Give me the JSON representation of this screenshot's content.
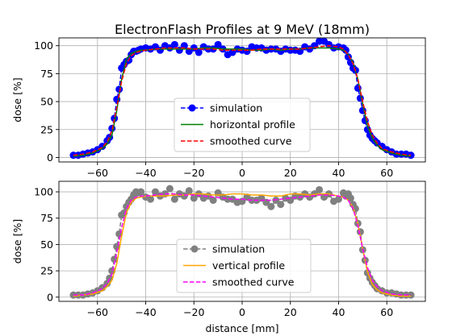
{
  "figure": {
    "title": "ElectronFlash Profiles at 9 MeV (18mm)"
  },
  "chart_data": [
    {
      "type": "line",
      "title": "ElectronFlash Profiles at 9 MeV (18mm)",
      "xlabel": "",
      "ylabel": "dose [%]",
      "xlim": [
        -76,
        76
      ],
      "ylim": [
        -4,
        107
      ],
      "xticks": [
        -60,
        -40,
        -20,
        0,
        20,
        40,
        60
      ],
      "xtick_labels": [
        "−60",
        "−40",
        "−20",
        "0",
        "20",
        "40",
        "60"
      ],
      "yticks": [
        0,
        25,
        50,
        75,
        100
      ],
      "grid": true,
      "legend_position": "lower-center",
      "series": [
        {
          "name": "simulation",
          "style": "dashed-with-markers",
          "color": "#0000ff",
          "x": [
            -70,
            -68,
            -66,
            -64,
            -62,
            -60,
            -58,
            -56,
            -55,
            -54,
            -53,
            -52,
            -51,
            -50,
            -49,
            -48,
            -47,
            -46,
            -45,
            -44,
            -43,
            -42,
            -40,
            -38,
            -36,
            -34,
            -32,
            -30,
            -28,
            -26,
            -24,
            -22,
            -20,
            -18,
            -16,
            -14,
            -12,
            -10,
            -8,
            -6,
            -4,
            -2,
            0,
            2,
            4,
            6,
            8,
            10,
            12,
            14,
            16,
            18,
            20,
            22,
            24,
            26,
            28,
            30,
            32,
            34,
            36,
            38,
            40,
            42,
            43,
            44,
            45,
            46,
            47,
            48,
            49,
            50,
            51,
            52,
            53,
            54,
            55,
            56,
            58,
            60,
            62,
            64,
            66,
            68,
            70
          ],
          "y": [
            2,
            2,
            3,
            4,
            5,
            7,
            10,
            15,
            18,
            26,
            35,
            52,
            61,
            80,
            83,
            86,
            87,
            92,
            95,
            95,
            96,
            97,
            98,
            97,
            99,
            96,
            100,
            98,
            101,
            96,
            100,
            95,
            98,
            94,
            99,
            97,
            97,
            101,
            97,
            92,
            94,
            97,
            96,
            95,
            99,
            98,
            98,
            96,
            97,
            97,
            95,
            97,
            96,
            96,
            95,
            99,
            97,
            100,
            104,
            104,
            101,
            98,
            99,
            98,
            96,
            90,
            85,
            80,
            78,
            62,
            53,
            42,
            33,
            25,
            20,
            17,
            15,
            13,
            10,
            7,
            5,
            3,
            3,
            3,
            2
          ]
        },
        {
          "name": "horizontal profile",
          "style": "solid",
          "color": "#008000",
          "x": [
            -70,
            -66,
            -62,
            -58,
            -56,
            -54,
            -52,
            -50,
            -48,
            -46,
            -44,
            -42,
            -40,
            -36,
            -32,
            -28,
            -24,
            -20,
            -16,
            -12,
            -8,
            -4,
            0,
            4,
            8,
            12,
            16,
            20,
            24,
            28,
            32,
            36,
            40,
            42,
            44,
            46,
            48,
            50,
            52,
            54,
            56,
            58,
            62,
            66,
            70
          ],
          "y": [
            1,
            2,
            4,
            8,
            12,
            20,
            42,
            70,
            88,
            93,
            95,
            96,
            96,
            97,
            97,
            97,
            97,
            97,
            98,
            98,
            97,
            97,
            97,
            96,
            96,
            97,
            96,
            97,
            97,
            98,
            98,
            98,
            97,
            96,
            92,
            85,
            70,
            48,
            28,
            17,
            11,
            7,
            4,
            2,
            1
          ]
        },
        {
          "name": "smoothed curve",
          "style": "dashed",
          "color": "#ff0000",
          "x": [
            -70,
            -66,
            -62,
            -58,
            -56,
            -54,
            -52,
            -50,
            -48,
            -46,
            -44,
            -42,
            -40,
            -36,
            -32,
            -28,
            -24,
            -20,
            -16,
            -12,
            -8,
            -4,
            0,
            4,
            8,
            12,
            16,
            20,
            24,
            28,
            32,
            36,
            40,
            42,
            44,
            46,
            48,
            50,
            52,
            54,
            56,
            58,
            62,
            66,
            70
          ],
          "y": [
            2,
            3,
            5,
            9,
            14,
            24,
            45,
            68,
            84,
            91,
            94,
            95,
            96,
            97,
            98,
            98,
            98,
            97,
            97,
            97,
            96,
            96,
            96,
            96,
            97,
            97,
            97,
            97,
            97,
            98,
            99,
            100,
            99,
            97,
            92,
            84,
            70,
            50,
            32,
            20,
            13,
            8,
            5,
            3,
            2
          ]
        }
      ]
    },
    {
      "type": "line",
      "title": "",
      "xlabel": "distance [mm]",
      "ylabel": "dose [%]",
      "xlim": [
        -76,
        76
      ],
      "ylim": [
        -4,
        110
      ],
      "xticks": [
        -60,
        -40,
        -20,
        0,
        20,
        40,
        60
      ],
      "xtick_labels": [
        "−60",
        "−40",
        "−20",
        "0",
        "20",
        "40",
        "60"
      ],
      "yticks": [
        0,
        25,
        50,
        75,
        100
      ],
      "grid": true,
      "legend_position": "lower-center",
      "series": [
        {
          "name": "simulation",
          "style": "dashed-with-markers",
          "color": "#808080",
          "x": [
            -70,
            -68,
            -66,
            -64,
            -62,
            -60,
            -58,
            -56,
            -55,
            -54,
            -53,
            -52,
            -51,
            -50,
            -49,
            -48,
            -47,
            -46,
            -45,
            -44,
            -43,
            -42,
            -40,
            -38,
            -36,
            -34,
            -32,
            -30,
            -28,
            -26,
            -24,
            -22,
            -20,
            -18,
            -16,
            -14,
            -12,
            -10,
            -8,
            -6,
            -4,
            -2,
            0,
            2,
            4,
            6,
            8,
            10,
            12,
            14,
            16,
            18,
            20,
            22,
            24,
            26,
            28,
            30,
            32,
            34,
            36,
            38,
            40,
            42,
            43,
            44,
            45,
            46,
            47,
            48,
            49,
            50,
            51,
            52,
            53,
            54,
            55,
            56,
            58,
            60,
            62,
            64,
            66,
            68,
            70
          ],
          "y": [
            2,
            2,
            2,
            3,
            4,
            6,
            9,
            13,
            18,
            25,
            36,
            48,
            60,
            78,
            80,
            86,
            90,
            93,
            97,
            100,
            99,
            100,
            95,
            93,
            100,
            96,
            98,
            103,
            93,
            98,
            96,
            101,
            94,
            98,
            94,
            96,
            92,
            99,
            95,
            93,
            93,
            90,
            91,
            95,
            92,
            92,
            94,
            90,
            86,
            92,
            88,
            94,
            92,
            96,
            95,
            98,
            95,
            98,
            102,
            95,
            98,
            91,
            93,
            99,
            96,
            98,
            94,
            88,
            84,
            70,
            62,
            45,
            35,
            23,
            18,
            14,
            11,
            8,
            6,
            4,
            4,
            3,
            2,
            2,
            2
          ]
        },
        {
          "name": "vertical profile",
          "style": "solid",
          "color": "#ffa500",
          "x": [
            -70,
            -66,
            -62,
            -58,
            -56,
            -54,
            -52,
            -50,
            -48,
            -46,
            -44,
            -42,
            -40,
            -36,
            -32,
            -28,
            -24,
            -20,
            -16,
            -12,
            -8,
            -4,
            0,
            4,
            8,
            12,
            16,
            20,
            24,
            28,
            32,
            36,
            40,
            42,
            44,
            46,
            48,
            50,
            52,
            54,
            56,
            58,
            62,
            66,
            70
          ],
          "y": [
            1,
            2,
            3,
            6,
            10,
            16,
            32,
            58,
            80,
            90,
            94,
            95,
            96,
            96,
            96,
            97,
            97,
            98,
            98,
            97,
            97,
            98,
            98,
            97,
            97,
            96,
            96,
            98,
            98,
            97,
            98,
            98,
            96,
            95,
            92,
            85,
            70,
            46,
            24,
            12,
            7,
            4,
            2,
            1,
            1
          ]
        },
        {
          "name": "smoothed curve",
          "style": "dashed",
          "color": "#ff00ff",
          "x": [
            -70,
            -66,
            -62,
            -58,
            -56,
            -54,
            -52,
            -50,
            -48,
            -46,
            -44,
            -42,
            -40,
            -36,
            -32,
            -28,
            -24,
            -20,
            -16,
            -12,
            -8,
            -4,
            0,
            4,
            8,
            12,
            16,
            20,
            24,
            28,
            32,
            36,
            40,
            42,
            44,
            46,
            48,
            50,
            52,
            54,
            56,
            58,
            62,
            66,
            70
          ],
          "y": [
            2,
            2,
            4,
            8,
            13,
            22,
            42,
            66,
            84,
            92,
            95,
            96,
            96,
            97,
            98,
            98,
            97,
            97,
            96,
            95,
            94,
            93,
            93,
            92,
            92,
            92,
            93,
            94,
            95,
            96,
            97,
            97,
            96,
            95,
            92,
            84,
            68,
            46,
            28,
            16,
            10,
            6,
            3,
            2,
            2
          ]
        }
      ]
    }
  ]
}
